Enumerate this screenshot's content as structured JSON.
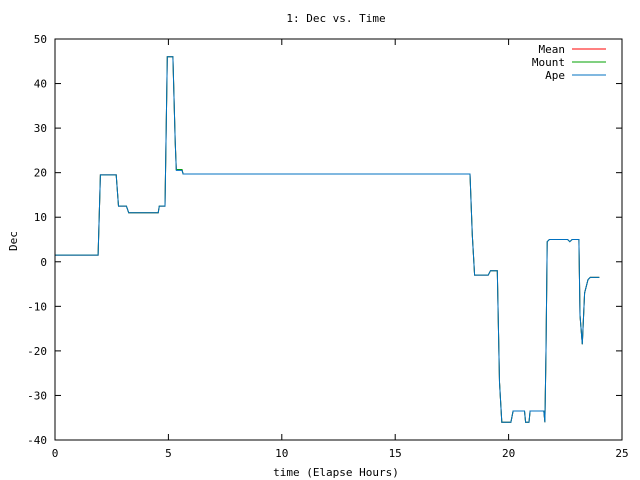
{
  "chart_data": {
    "type": "line",
    "title": "1: Dec vs. Time",
    "xlabel": "time (Elapse Hours)",
    "ylabel": "Dec",
    "xlim": [
      0,
      25
    ],
    "ylim": [
      -40,
      50
    ],
    "x_ticks": [
      0,
      5,
      10,
      15,
      20,
      25
    ],
    "y_ticks": [
      -40,
      -30,
      -20,
      -10,
      0,
      10,
      20,
      30,
      40,
      50
    ],
    "grid": false,
    "legend_placement": "top-right",
    "series": [
      {
        "name": "Mean",
        "color": "#ff0000",
        "points": [
          [
            0,
            1.5
          ],
          [
            1.9,
            1.5
          ],
          [
            2.0,
            19.5
          ],
          [
            2.7,
            19.5
          ],
          [
            2.8,
            12.5
          ],
          [
            3.15,
            12.5
          ],
          [
            3.25,
            11
          ],
          [
            4.55,
            11
          ],
          [
            4.6,
            12.5
          ],
          [
            4.85,
            12.5
          ],
          [
            4.95,
            46
          ],
          [
            5.2,
            46
          ],
          [
            5.3,
            27
          ],
          [
            5.35,
            20.7
          ],
          [
            5.6,
            20.7
          ],
          [
            5.65,
            19.7
          ],
          [
            18.3,
            19.7
          ],
          [
            18.4,
            6
          ],
          [
            18.5,
            -3
          ],
          [
            19.1,
            -3
          ],
          [
            19.2,
            -2
          ],
          [
            19.5,
            -2
          ],
          [
            19.6,
            -27
          ],
          [
            19.7,
            -36
          ],
          [
            20.1,
            -36
          ],
          [
            20.2,
            -33.5
          ],
          [
            20.7,
            -33.5
          ],
          [
            20.75,
            -36
          ],
          [
            20.9,
            -36
          ],
          [
            20.95,
            -33.5
          ],
          [
            21.55,
            -33.5
          ],
          [
            21.6,
            -36
          ],
          [
            21.65,
            -20
          ],
          [
            21.7,
            4.5
          ],
          [
            21.8,
            5
          ],
          [
            22.6,
            5
          ],
          [
            22.7,
            4.5
          ],
          [
            22.8,
            5
          ],
          [
            23.1,
            5
          ],
          [
            23.15,
            -12
          ],
          [
            23.25,
            -18.5
          ],
          [
            23.35,
            -7
          ],
          [
            23.5,
            -4
          ],
          [
            23.6,
            -3.5
          ],
          [
            24,
            -3.5
          ]
        ]
      },
      {
        "name": "Mount",
        "color": "#00a000",
        "points": [
          [
            0,
            1.5
          ],
          [
            1.9,
            1.5
          ],
          [
            2.0,
            19.5
          ],
          [
            2.7,
            19.5
          ],
          [
            2.8,
            12.5
          ],
          [
            3.15,
            12.5
          ],
          [
            3.25,
            11
          ],
          [
            4.55,
            11
          ],
          [
            4.6,
            12.5
          ],
          [
            4.85,
            12.5
          ],
          [
            4.95,
            46
          ],
          [
            5.2,
            46
          ],
          [
            5.3,
            27
          ],
          [
            5.35,
            20.7
          ],
          [
            5.6,
            20.7
          ],
          [
            5.65,
            19.7
          ],
          [
            18.3,
            19.7
          ],
          [
            18.4,
            6
          ],
          [
            18.5,
            -3
          ],
          [
            19.1,
            -3
          ],
          [
            19.2,
            -2
          ],
          [
            19.5,
            -2
          ],
          [
            19.6,
            -27
          ],
          [
            19.7,
            -36
          ],
          [
            20.1,
            -36
          ],
          [
            20.2,
            -33.5
          ],
          [
            20.7,
            -33.5
          ],
          [
            20.75,
            -36
          ],
          [
            20.9,
            -36
          ],
          [
            20.95,
            -33.5
          ],
          [
            21.55,
            -33.5
          ],
          [
            21.6,
            -36
          ],
          [
            21.65,
            -20
          ],
          [
            21.7,
            4.5
          ],
          [
            21.8,
            5
          ],
          [
            22.6,
            5
          ],
          [
            22.7,
            4.5
          ],
          [
            22.8,
            5
          ],
          [
            23.1,
            5
          ],
          [
            23.15,
            -12
          ],
          [
            23.25,
            -18.5
          ],
          [
            23.35,
            -7
          ],
          [
            23.5,
            -4
          ],
          [
            23.6,
            -3.5
          ],
          [
            24,
            -3.5
          ]
        ]
      },
      {
        "name": "Ape",
        "color": "#0070c0",
        "points": [
          [
            0,
            1.5
          ],
          [
            1.9,
            1.5
          ],
          [
            2.0,
            19.5
          ],
          [
            2.7,
            19.5
          ],
          [
            2.8,
            12.5
          ],
          [
            3.15,
            12.5
          ],
          [
            3.25,
            11
          ],
          [
            4.55,
            11
          ],
          [
            4.6,
            12.5
          ],
          [
            4.85,
            12.5
          ],
          [
            4.95,
            46
          ],
          [
            5.2,
            46
          ],
          [
            5.3,
            27
          ],
          [
            5.35,
            20.5
          ],
          [
            5.6,
            20.5
          ],
          [
            5.65,
            19.7
          ],
          [
            18.3,
            19.7
          ],
          [
            18.4,
            6
          ],
          [
            18.5,
            -3
          ],
          [
            19.1,
            -3
          ],
          [
            19.2,
            -2
          ],
          [
            19.5,
            -2
          ],
          [
            19.6,
            -27
          ],
          [
            19.7,
            -36
          ],
          [
            20.1,
            -36
          ],
          [
            20.2,
            -33.5
          ],
          [
            20.7,
            -33.5
          ],
          [
            20.75,
            -36
          ],
          [
            20.9,
            -36
          ],
          [
            20.95,
            -33.5
          ],
          [
            21.55,
            -33.5
          ],
          [
            21.6,
            -36
          ],
          [
            21.65,
            -20
          ],
          [
            21.7,
            4.5
          ],
          [
            21.8,
            5
          ],
          [
            22.6,
            5
          ],
          [
            22.7,
            4.5
          ],
          [
            22.8,
            5
          ],
          [
            23.1,
            5
          ],
          [
            23.15,
            -12
          ],
          [
            23.25,
            -18.5
          ],
          [
            23.35,
            -7
          ],
          [
            23.5,
            -4
          ],
          [
            23.6,
            -3.5
          ],
          [
            24,
            -3.5
          ]
        ]
      }
    ]
  }
}
